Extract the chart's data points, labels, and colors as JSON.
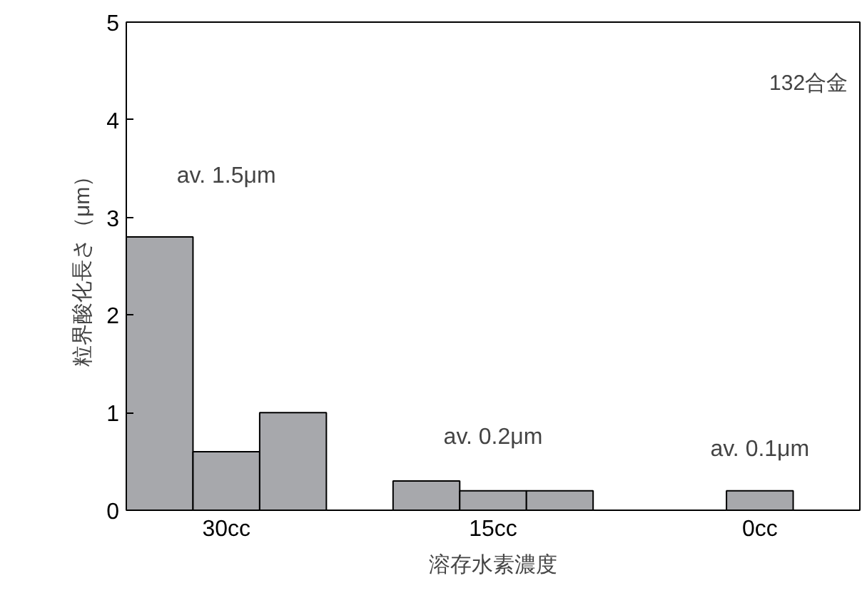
{
  "chart_data": {
    "type": "bar",
    "categories": [
      "30cc",
      "15cc",
      "0cc"
    ],
    "series": [
      {
        "color": "#a7a8ac",
        "values": [
          2.8,
          0.3,
          null
        ]
      },
      {
        "color": "#a7a8ac",
        "values": [
          0.6,
          0.2,
          0.2
        ]
      },
      {
        "color": "#a7a8ac",
        "values": [
          1.0,
          0.2,
          null
        ]
      }
    ],
    "xlabel": "溶存水素濃度",
    "ylabel": "粒界酸化長さ（μm）",
    "ylim": [
      0,
      5
    ],
    "yticks": [
      0,
      1,
      2,
      3,
      4,
      5
    ],
    "grid": false,
    "annotations": [
      "132合金",
      "av. 1.5μm",
      "av. 0.2μm",
      "av. 0.1μm"
    ]
  }
}
